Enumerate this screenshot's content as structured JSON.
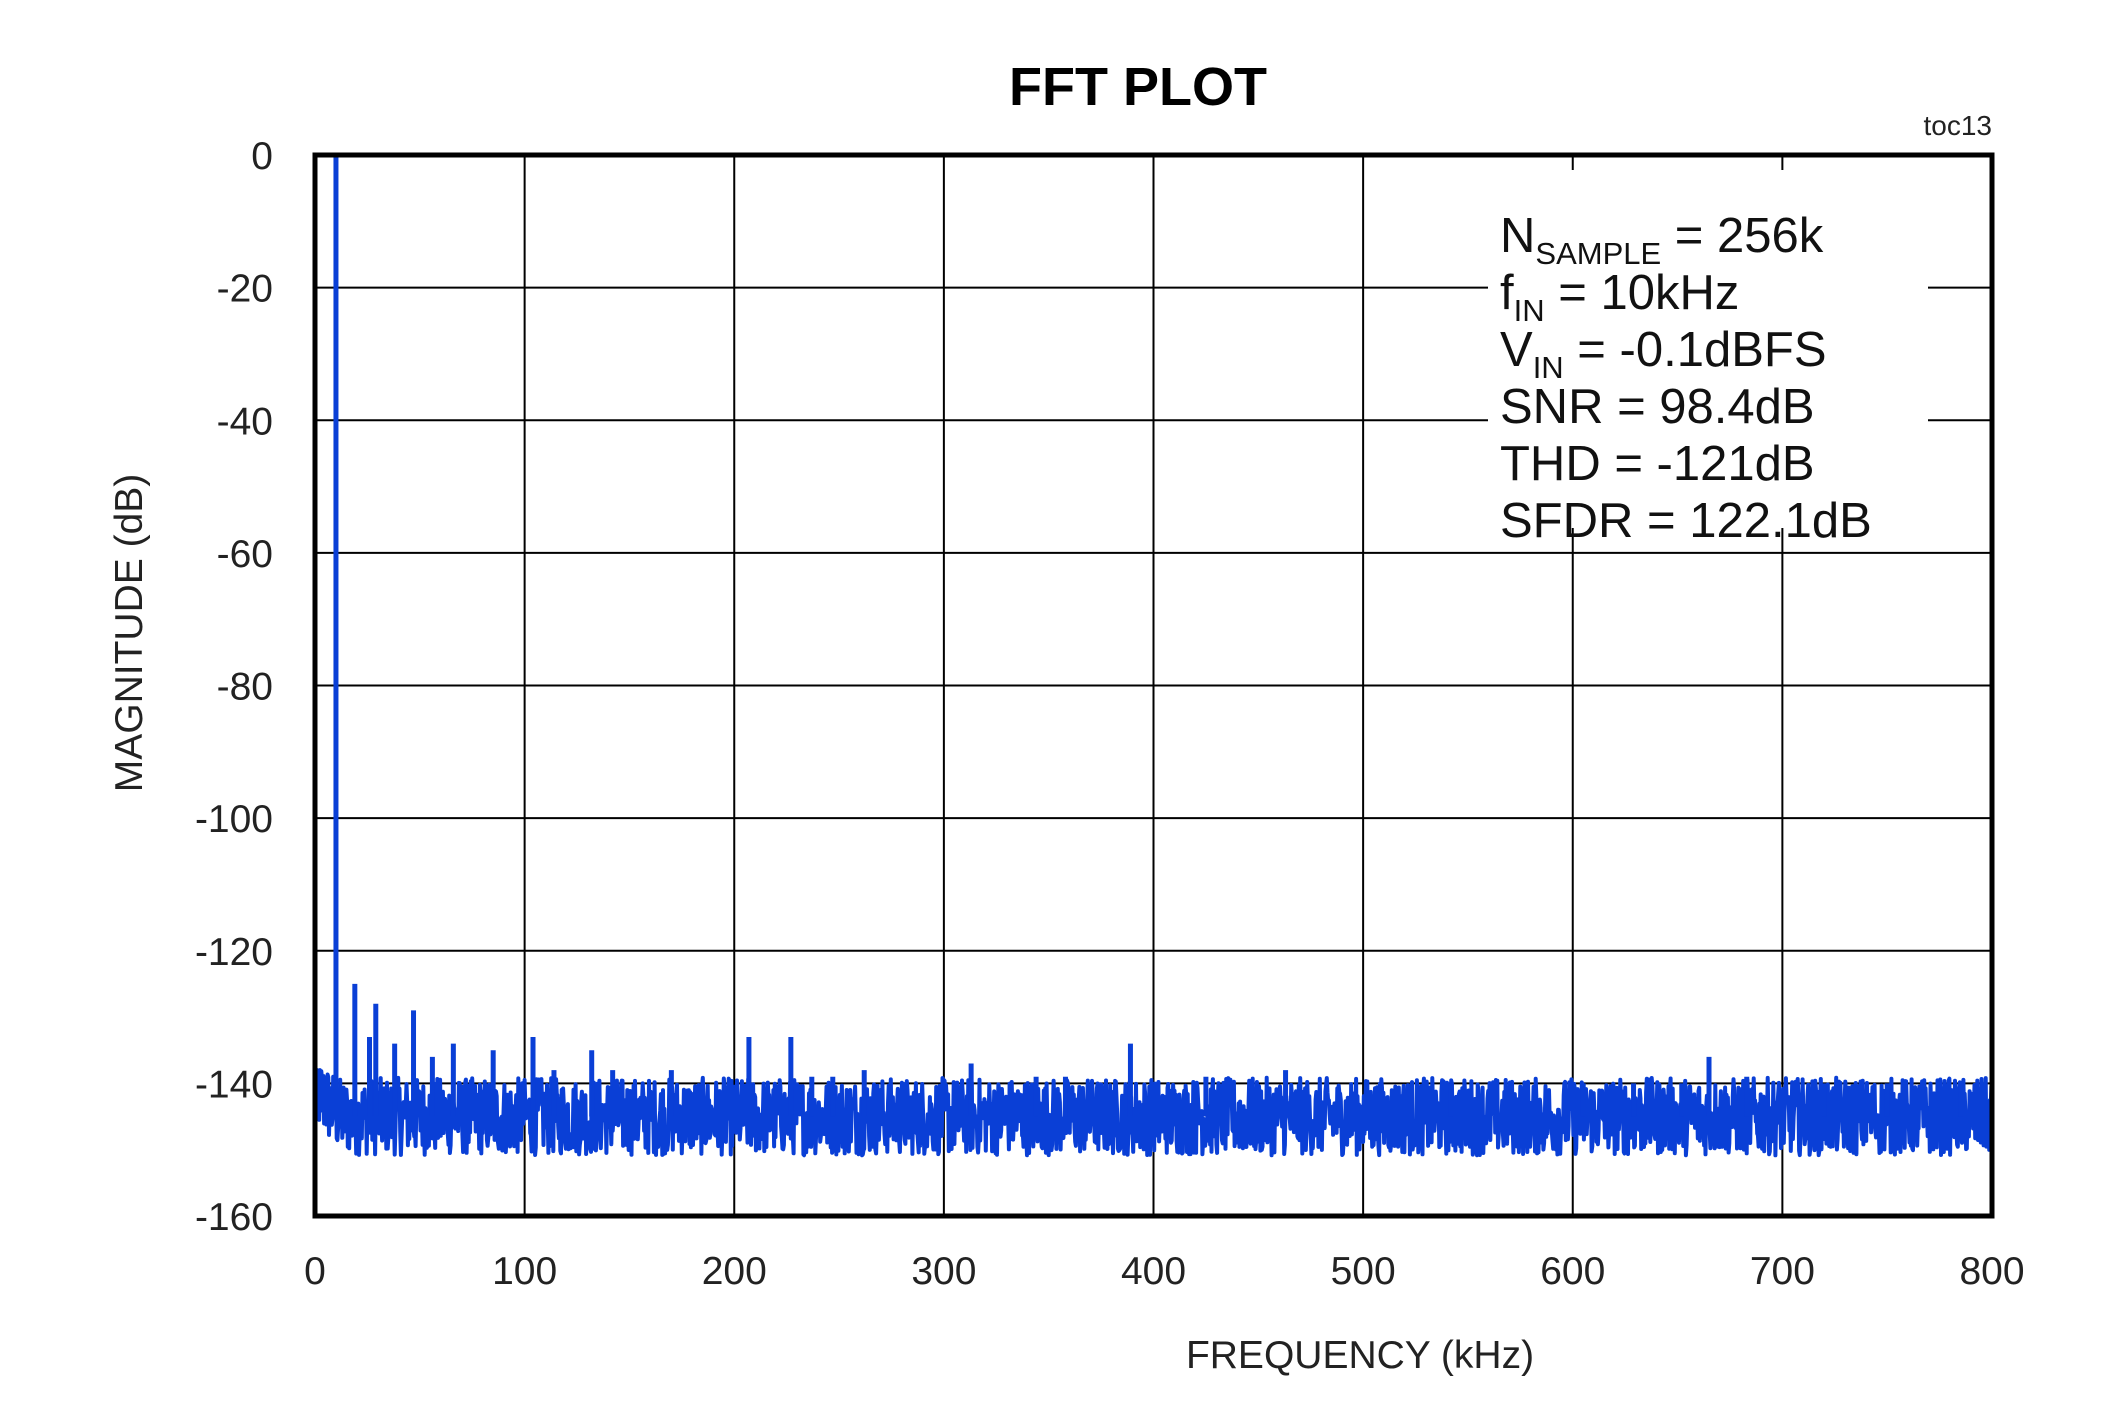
{
  "chart_data": {
    "type": "line",
    "title": "FFT PLOT",
    "figure_note": "toc13",
    "xlabel": "FREQUENCY (kHz)",
    "ylabel": "MAGNITUDE (dB)",
    "xlim": [
      0,
      800
    ],
    "ylim": [
      -160,
      0
    ],
    "x_ticks": [
      0,
      100,
      200,
      300,
      400,
      500,
      600,
      700,
      800
    ],
    "y_ticks": [
      0,
      -20,
      -40,
      -60,
      -80,
      -100,
      -120,
      -140,
      -160
    ],
    "grid": true,
    "series_color": "#0a3fd6",
    "noise_floor": {
      "level_db": -145,
      "min_db": -151,
      "max_db": -138
    },
    "peaks": [
      [
        10,
        0
      ],
      [
        19,
        -125
      ],
      [
        26,
        -133
      ],
      [
        29,
        -128
      ],
      [
        38,
        -134
      ],
      [
        47,
        -129
      ],
      [
        56,
        -136
      ],
      [
        66,
        -134
      ],
      [
        85,
        -135
      ],
      [
        104,
        -133
      ],
      [
        114,
        -138
      ],
      [
        132,
        -135
      ],
      [
        142,
        -138
      ],
      [
        170,
        -138
      ],
      [
        207,
        -133
      ],
      [
        227,
        -133
      ],
      [
        237,
        -139
      ],
      [
        247,
        -139
      ],
      [
        262,
        -138
      ],
      [
        313,
        -137
      ],
      [
        344,
        -139
      ],
      [
        358,
        -139
      ],
      [
        389,
        -134
      ],
      [
        425,
        -139
      ],
      [
        463,
        -138
      ],
      [
        542,
        -140
      ],
      [
        605,
        -140
      ],
      [
        629,
        -140
      ],
      [
        652,
        -140
      ],
      [
        665,
        -136
      ],
      [
        683,
        -139
      ],
      [
        720,
        -140
      ],
      [
        750,
        -140
      ],
      [
        785,
        -140
      ]
    ],
    "annotations": [
      {
        "main": "N",
        "sub": "SAMPLE",
        "rest": " = 256k"
      },
      {
        "main": "f",
        "sub": "IN",
        "rest": " = 10kHz"
      },
      {
        "main": "V",
        "sub": "IN",
        "rest": " = -0.1dBFS"
      },
      {
        "main": "SNR =  98.4dB",
        "sub": "",
        "rest": ""
      },
      {
        "main": "THD = -121dB",
        "sub": "",
        "rest": ""
      },
      {
        "main": "SFDR = 122.1dB",
        "sub": "",
        "rest": ""
      }
    ]
  }
}
